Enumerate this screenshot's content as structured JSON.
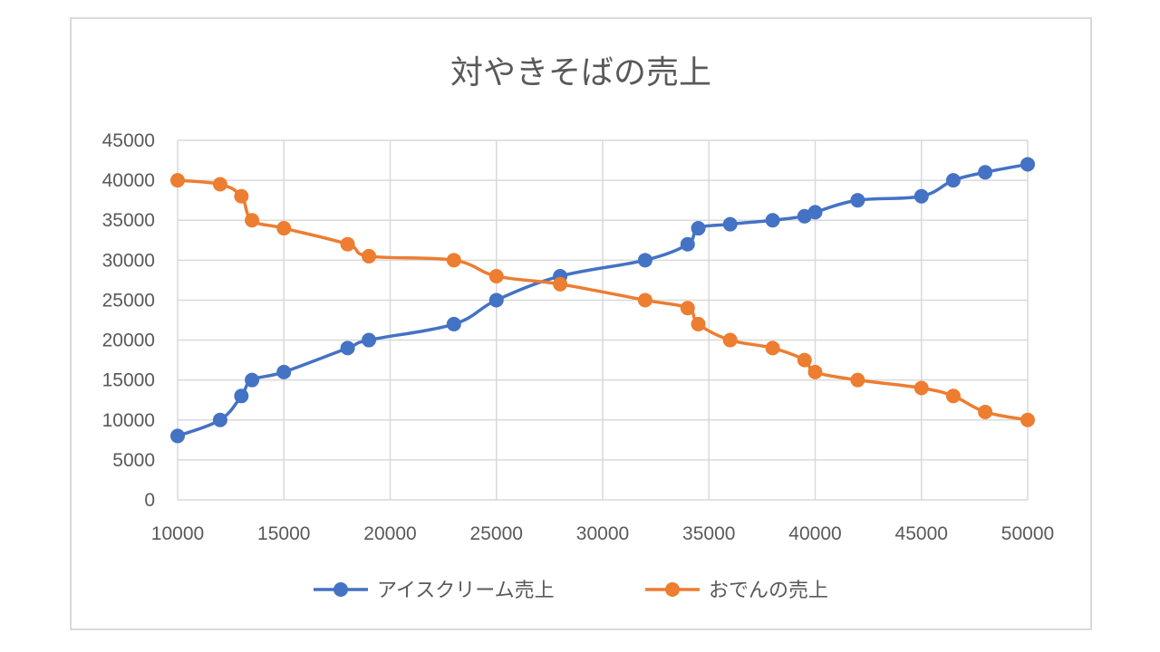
{
  "chart_data": {
    "type": "scatter",
    "title": "対やきそばの売上",
    "xlabel": "",
    "ylabel": "",
    "xlim": [
      10000,
      50000
    ],
    "ylim": [
      0,
      45000
    ],
    "xticks": [
      10000,
      15000,
      20000,
      25000,
      30000,
      35000,
      40000,
      45000,
      50000
    ],
    "yticks": [
      0,
      5000,
      10000,
      15000,
      20000,
      25000,
      30000,
      35000,
      40000,
      45000
    ],
    "xtick_labels": [
      "10000",
      "15000",
      "20000",
      "25000",
      "30000",
      "35000",
      "40000",
      "45000",
      "50000"
    ],
    "ytick_labels": [
      "0",
      "5000",
      "10000",
      "15000",
      "20000",
      "25000",
      "30000",
      "35000",
      "40000",
      "45000"
    ],
    "grid": true,
    "legend_position": "bottom",
    "series": [
      {
        "name": "アイスクリーム売上",
        "color": "#4472C4",
        "points": [
          [
            10000,
            8000
          ],
          [
            12000,
            10000
          ],
          [
            13000,
            13000
          ],
          [
            13500,
            15000
          ],
          [
            15000,
            16000
          ],
          [
            18000,
            19000
          ],
          [
            19000,
            20000
          ],
          [
            23000,
            22000
          ],
          [
            25000,
            25000
          ],
          [
            28000,
            28000
          ],
          [
            32000,
            30000
          ],
          [
            34000,
            32000
          ],
          [
            34500,
            34000
          ],
          [
            36000,
            34500
          ],
          [
            38000,
            35000
          ],
          [
            39500,
            35500
          ],
          [
            40000,
            36000
          ],
          [
            42000,
            37500
          ],
          [
            45000,
            38000
          ],
          [
            46500,
            40000
          ],
          [
            48000,
            41000
          ],
          [
            50000,
            42000
          ]
        ]
      },
      {
        "name": "おでんの売上",
        "color": "#ED7D31",
        "points": [
          [
            10000,
            40000
          ],
          [
            12000,
            39500
          ],
          [
            13000,
            38000
          ],
          [
            13500,
            35000
          ],
          [
            15000,
            34000
          ],
          [
            18000,
            32000
          ],
          [
            19000,
            30500
          ],
          [
            23000,
            30000
          ],
          [
            25000,
            28000
          ],
          [
            28000,
            27000
          ],
          [
            32000,
            25000
          ],
          [
            34000,
            24000
          ],
          [
            34500,
            22000
          ],
          [
            36000,
            20000
          ],
          [
            38000,
            19000
          ],
          [
            39500,
            17500
          ],
          [
            40000,
            16000
          ],
          [
            42000,
            15000
          ],
          [
            45000,
            14000
          ],
          [
            46500,
            13000
          ],
          [
            48000,
            11000
          ],
          [
            50000,
            10000
          ]
        ]
      }
    ]
  }
}
